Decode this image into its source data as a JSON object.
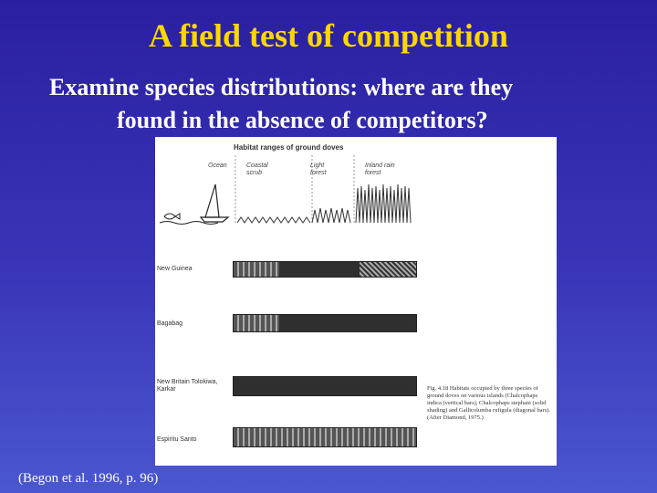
{
  "slide": {
    "title": "A field test of competition",
    "subtitle_line1": "Examine species distributions: where are they",
    "subtitle_line2": "found in the absence of competitors?",
    "citation": "(Begon et al. 1996, p. 96)"
  },
  "figure": {
    "heading": "Habitat ranges of ground doves",
    "habitats": [
      "Ocean",
      "Coastal scrub",
      "Light forest",
      "Inland rain forest"
    ],
    "islands": [
      "New Guinea",
      "Bagabag",
      "New Britain Tolokiwa, Karkar",
      "Espiritu Santo"
    ],
    "caption": "Fig. 4.18 Habitats occupied by three species of ground doves on various islands (Chalcophaps indica (vertical bars), Chalcophaps stephani (solid shading) and Gallicolumba rufigula (diagonal bars). (After Diamond, 1975.)",
    "pattern_colors": {
      "vertical": "#555555",
      "solid": "#2f2f2f",
      "diagonal": "#333333"
    }
  }
}
